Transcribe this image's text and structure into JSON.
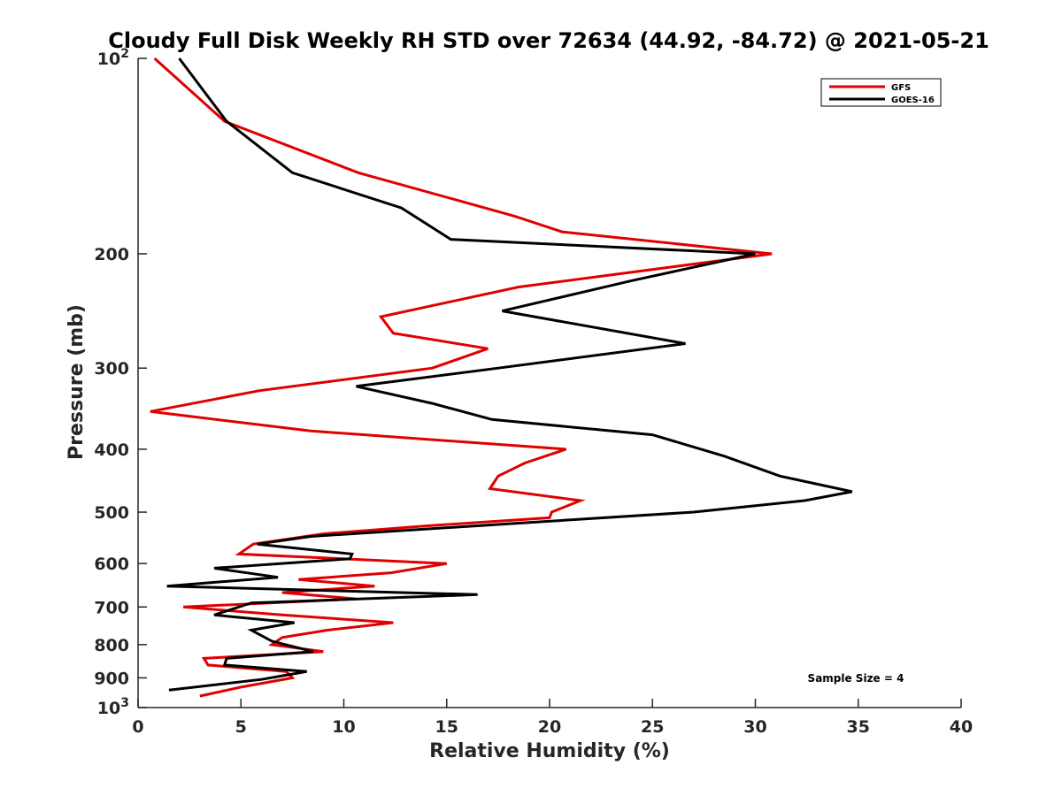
{
  "chart_data": {
    "type": "line",
    "title": "Cloudy Full Disk Weekly RH STD over 72634 (44.92, -84.72) @ 2021-05-21",
    "xlabel": "Relative Humidity (%)",
    "ylabel": "Pressure (mb)",
    "xlim": [
      0,
      40
    ],
    "ylim": [
      100,
      1000
    ],
    "y_scale": "log",
    "y_reversed": true,
    "x_ticks": [
      0,
      5,
      10,
      15,
      20,
      25,
      30,
      35,
      40
    ],
    "y_ticks": [
      {
        "value": 100,
        "label": "10",
        "sup": "2"
      },
      {
        "value": 200,
        "label": "200",
        "sup": ""
      },
      {
        "value": 300,
        "label": "300",
        "sup": ""
      },
      {
        "value": 400,
        "label": "400",
        "sup": ""
      },
      {
        "value": 500,
        "label": "500",
        "sup": ""
      },
      {
        "value": 600,
        "label": "600",
        "sup": ""
      },
      {
        "value": 700,
        "label": "700",
        "sup": ""
      },
      {
        "value": 800,
        "label": "800",
        "sup": ""
      },
      {
        "value": 900,
        "label": "900",
        "sup": ""
      },
      {
        "value": 1000,
        "label": "10",
        "sup": "3"
      }
    ],
    "grid": false,
    "legend_position": "top-right",
    "annotation": "Sample Size = 4",
    "series": [
      {
        "name": "GFS",
        "color": "#e00000",
        "points": [
          [
            0.8,
            100
          ],
          [
            4.2,
            125
          ],
          [
            10.7,
            150
          ],
          [
            18.3,
            175
          ],
          [
            20.6,
            185
          ],
          [
            30.8,
            200
          ],
          [
            18.5,
            225
          ],
          [
            11.8,
            250
          ],
          [
            12.4,
            265
          ],
          [
            17.0,
            280
          ],
          [
            14.3,
            300
          ],
          [
            5.9,
            325
          ],
          [
            0.6,
            350
          ],
          [
            8.4,
            375
          ],
          [
            20.8,
            400
          ],
          [
            18.8,
            420
          ],
          [
            17.5,
            440
          ],
          [
            17.1,
            460
          ],
          [
            21.5,
            480
          ],
          [
            20.1,
            500
          ],
          [
            20.0,
            510
          ],
          [
            14.0,
            525
          ],
          [
            9.0,
            540
          ],
          [
            5.6,
            560
          ],
          [
            4.9,
            580
          ],
          [
            15.0,
            600
          ],
          [
            12.3,
            620
          ],
          [
            7.8,
            635
          ],
          [
            11.5,
            650
          ],
          [
            7.0,
            665
          ],
          [
            10.6,
            680
          ],
          [
            2.2,
            700
          ],
          [
            7.0,
            720
          ],
          [
            12.4,
            740
          ],
          [
            9.2,
            760
          ],
          [
            7.0,
            780
          ],
          [
            6.5,
            800
          ],
          [
            9.0,
            820
          ],
          [
            3.2,
            840
          ],
          [
            3.4,
            860
          ],
          [
            7.2,
            880
          ],
          [
            7.5,
            900
          ],
          [
            5.0,
            930
          ],
          [
            3.0,
            960
          ]
        ]
      },
      {
        "name": "GOES-16",
        "color": "#000000",
        "points": [
          [
            2.0,
            100
          ],
          [
            4.3,
            125
          ],
          [
            7.5,
            150
          ],
          [
            12.8,
            170
          ],
          [
            15.2,
            190
          ],
          [
            30.0,
            200
          ],
          [
            24.0,
            220
          ],
          [
            17.7,
            245
          ],
          [
            26.6,
            275
          ],
          [
            17.5,
            300
          ],
          [
            10.6,
            320
          ],
          [
            14.3,
            340
          ],
          [
            17.2,
            360
          ],
          [
            25.0,
            380
          ],
          [
            28.5,
            410
          ],
          [
            31.2,
            440
          ],
          [
            34.7,
            465
          ],
          [
            32.4,
            480
          ],
          [
            27.0,
            500
          ],
          [
            18.5,
            520
          ],
          [
            8.4,
            545
          ],
          [
            5.8,
            560
          ],
          [
            10.4,
            580
          ],
          [
            10.3,
            590
          ],
          [
            3.7,
            610
          ],
          [
            6.8,
            630
          ],
          [
            1.4,
            650
          ],
          [
            16.5,
            670
          ],
          [
            5.5,
            690
          ],
          [
            3.7,
            720
          ],
          [
            7.6,
            740
          ],
          [
            5.5,
            760
          ],
          [
            6.5,
            790
          ],
          [
            8.5,
            820
          ],
          [
            4.3,
            840
          ],
          [
            4.2,
            860
          ],
          [
            8.2,
            880
          ],
          [
            6.0,
            905
          ],
          [
            1.5,
            940
          ]
        ]
      }
    ]
  }
}
